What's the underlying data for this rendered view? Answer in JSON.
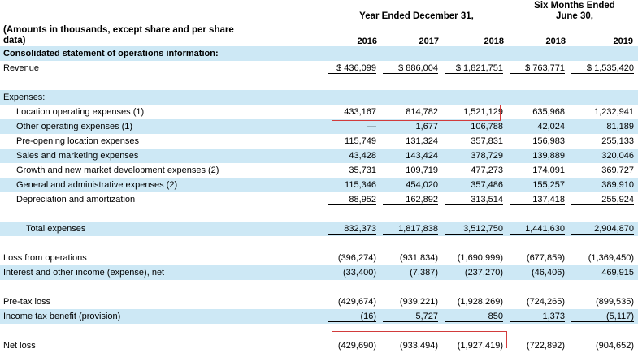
{
  "header": {
    "group1": "Year Ended December 31,",
    "group2_line1": "Six Months Ended",
    "group2_line2": "June 30,",
    "note": "(Amounts in thousands, except share and per share data)",
    "years": [
      "2016",
      "2017",
      "2018",
      "2018",
      "2019"
    ]
  },
  "section_title": "Consolidated statement of operations information:",
  "rows": [
    {
      "label": "Revenue",
      "values": [
        "$  436,099",
        "$  886,004",
        "$  1,821,751",
        "$  763,771",
        "$  1,535,420"
      ]
    },
    {
      "label": "Expenses:"
    },
    {
      "label": "Location operating expenses (1)",
      "values": [
        "433,167",
        "814,782",
        "1,521,129",
        "635,968",
        "1,232,941"
      ]
    },
    {
      "label": "Other operating expenses (1)",
      "values": [
        "—",
        "1,677",
        "106,788",
        "42,024",
        "81,189"
      ]
    },
    {
      "label": "Pre-opening location expenses",
      "values": [
        "115,749",
        "131,324",
        "357,831",
        "156,983",
        "255,133"
      ]
    },
    {
      "label": "Sales and marketing expenses",
      "values": [
        "43,428",
        "143,424",
        "378,729",
        "139,889",
        "320,046"
      ]
    },
    {
      "label": "Growth and new market development expenses (2)",
      "values": [
        "35,731",
        "109,719",
        "477,273",
        "174,091",
        "369,727"
      ]
    },
    {
      "label": "General and administrative expenses (2)",
      "values": [
        "115,346",
        "454,020",
        "357,486",
        "155,257",
        "389,910"
      ]
    },
    {
      "label": "Depreciation and amortization",
      "values": [
        "88,952",
        "162,892",
        "313,514",
        "137,418",
        "255,924"
      ]
    },
    {
      "label": "Total expenses",
      "values": [
        "832,373",
        "1,817,838",
        "3,512,750",
        "1,441,630",
        "2,904,870"
      ]
    },
    {
      "label": "Loss from operations",
      "values": [
        "(396,274)",
        "(931,834)",
        "(1,690,999)",
        "(677,859)",
        "(1,369,450)"
      ]
    },
    {
      "label": "Interest and other income (expense), net",
      "values": [
        "(33,400)",
        "(7,387)",
        "(237,270)",
        "(46,406)",
        "469,915"
      ]
    },
    {
      "label": "Pre-tax loss",
      "values": [
        "(429,674)",
        "(939,221)",
        "(1,928,269)",
        "(724,265)",
        "(899,535)"
      ]
    },
    {
      "label": "Income tax benefit (provision)",
      "values": [
        "(16)",
        "5,727",
        "850",
        "1,373",
        "(5,117)"
      ]
    },
    {
      "label": "Net loss",
      "values": [
        "(429,690)",
        "(933,494)",
        "(1,927,419)",
        "(722,892)",
        "(904,652)"
      ]
    }
  ],
  "colors": {
    "row_shade": "#cde8f5",
    "highlight": "#d23b3b"
  }
}
